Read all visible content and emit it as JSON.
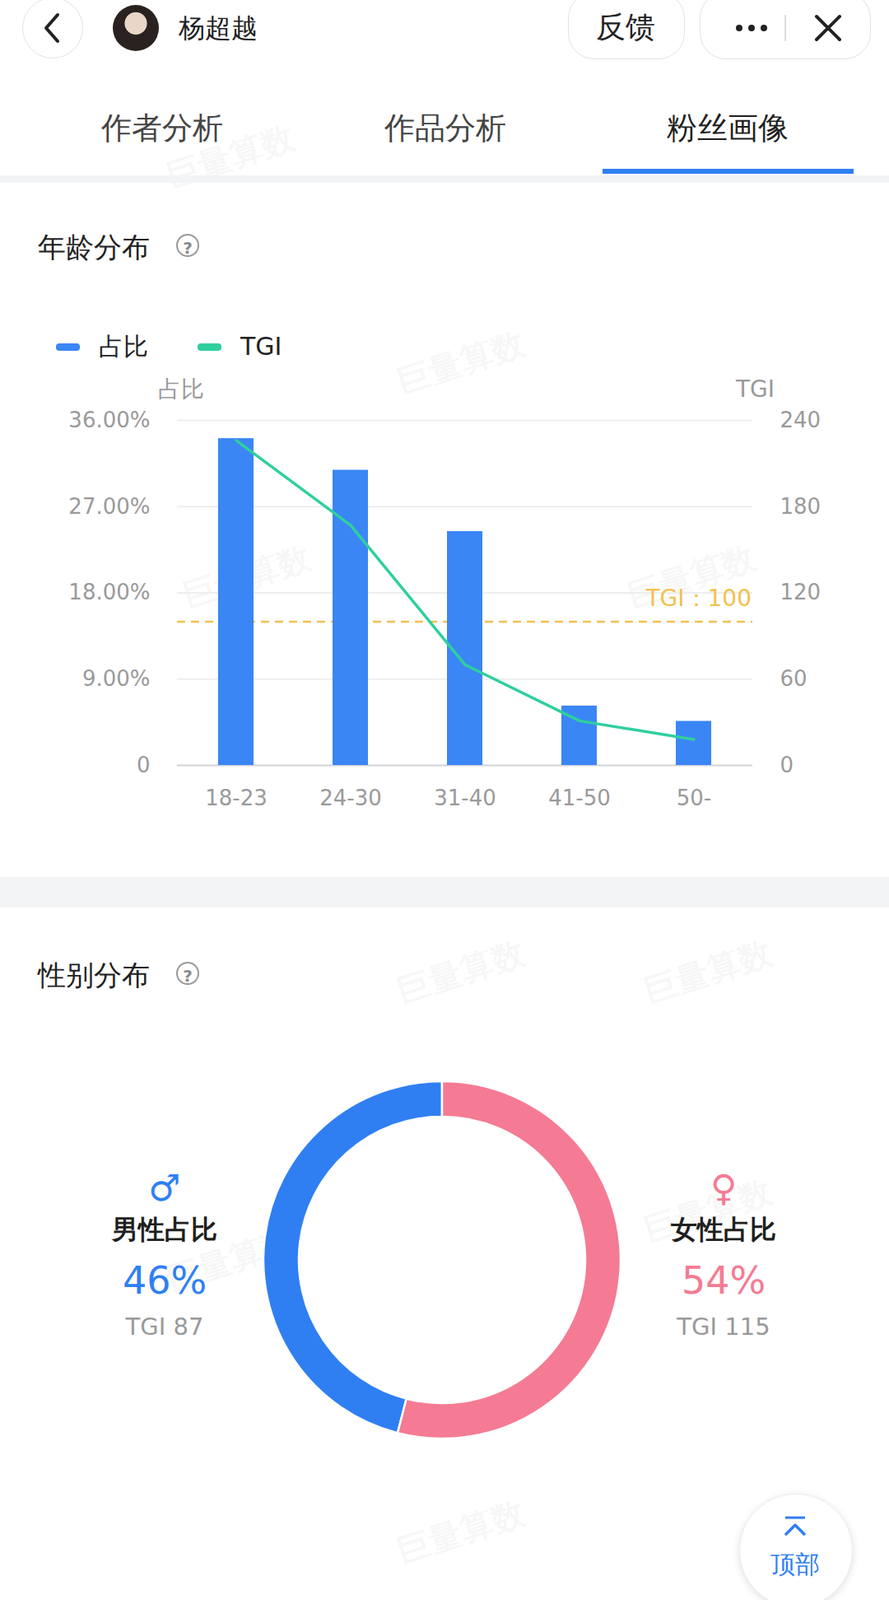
{
  "header": {
    "name": "杨超越",
    "buttons": [
      "反馈"
    ]
  },
  "tabs": {
    "items": [
      "作者分析",
      "作品分析",
      "粉丝画像"
    ],
    "active": "粉丝画像"
  },
  "help": "?",
  "watermark": "巨量算数",
  "back_to_top": "顶部",
  "chart_data": [
    {
      "type": "bar",
      "title": "年龄分布",
      "categories": [
        "18-23",
        "24-30",
        "31-40",
        "41-50",
        "50-"
      ],
      "series": [
        {
          "name": "占比",
          "type": "bar",
          "color": "#3a86f5",
          "values": [
            34.1,
            30.8,
            24.4,
            6.2,
            4.6
          ]
        },
        {
          "name": "TGI",
          "type": "line",
          "axis": "y2",
          "color": "#2fcf9e",
          "values": [
            226,
            167,
            70,
            31,
            18
          ]
        }
      ],
      "y_label": "占比",
      "y2_label": "TGI",
      "ylim": [
        0,
        36
      ],
      "yticks": [
        0,
        {
          "value": 9,
          "label": "9.00%"
        },
        {
          "value": 18,
          "label": "18.00%"
        },
        {
          "value": 27,
          "label": "27.00%"
        },
        {
          "value": 36,
          "label": "36.00%"
        }
      ],
      "y2lim": [
        0,
        240
      ],
      "y2ticks": [
        0,
        60,
        120,
        180,
        240
      ],
      "grid": true,
      "legend": "top-left",
      "reference_line": {
        "axis": "y2",
        "value": 100,
        "label": "TGI：100",
        "color": "#f2c14e",
        "line_style": "dashed"
      }
    },
    {
      "type": "donut",
      "title": "性别分布",
      "categories": [
        "男性占比",
        "女性占比"
      ],
      "symbols": [
        "♂",
        "♀"
      ],
      "values": [
        46,
        54
      ],
      "value_labels": [
        "46%",
        "54%"
      ],
      "colors": [
        "#2f7ff3",
        "#f47b93"
      ],
      "tgi_label": "TGI",
      "tgi": [
        87,
        115
      ]
    }
  ]
}
